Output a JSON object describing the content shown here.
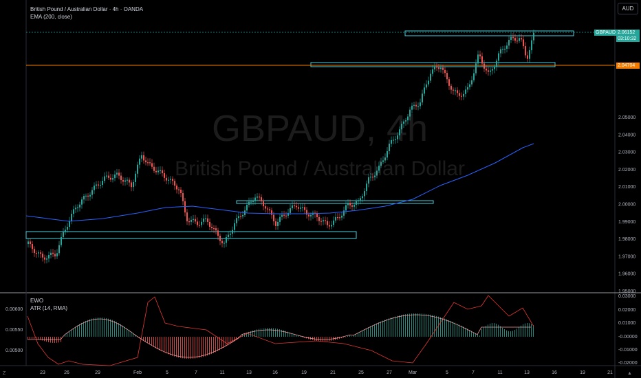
{
  "symbol_title": "British Pound / Australian Dollar · 4h · OANDA",
  "indicator_ema": "EMA (200, close)",
  "watermark": {
    "symbol": "GBPAUD, 4h",
    "name": "British Pound / Australian Dollar"
  },
  "currency_button": "AUD",
  "price_axis": {
    "ticks": [
      "2.05000",
      "2.04000",
      "2.03000",
      "2.02000",
      "2.01000",
      "2.00000",
      "1.99000",
      "1.98000",
      "1.97000",
      "1.96000",
      "1.95000"
    ],
    "tick_values": [
      2.05,
      2.04,
      2.03,
      2.02,
      2.01,
      2.0,
      1.99,
      1.98,
      1.97,
      1.96,
      1.95
    ]
  },
  "price_tags": {
    "symbol_label": "GBPAUD",
    "last_price": "2.06152",
    "countdown": "03:10:32",
    "line_price": "2.04704",
    "last_color": "#26a69a",
    "line_color": "#f57c00"
  },
  "lower_panel": {
    "indicator1": "EWO",
    "indicator2": "ATR (14, RMA)",
    "left_ticks": [
      "0.00600",
      "0.00550",
      "0.00500"
    ],
    "right_ticks": [
      "0.03000",
      "0.02000",
      "0.01000",
      "-0.00000",
      "-0.01000",
      "-0.02000"
    ]
  },
  "time_axis": {
    "labels": [
      "23",
      "26",
      "29",
      "Feb",
      "5",
      "7",
      "11",
      "13",
      "16",
      "19",
      "21",
      "25",
      "27",
      "Mar",
      "5",
      "7",
      "11",
      "13",
      "16",
      "19",
      "21"
    ]
  },
  "colors": {
    "up": "#26a69a",
    "down": "#ef5350",
    "ema": "#2962ff",
    "zone": "#4dd0e1",
    "hline": "#f57c00",
    "atr": "#e53935"
  },
  "icons": {
    "left": "timezone-icon",
    "right": "auto-scale-icon"
  }
}
